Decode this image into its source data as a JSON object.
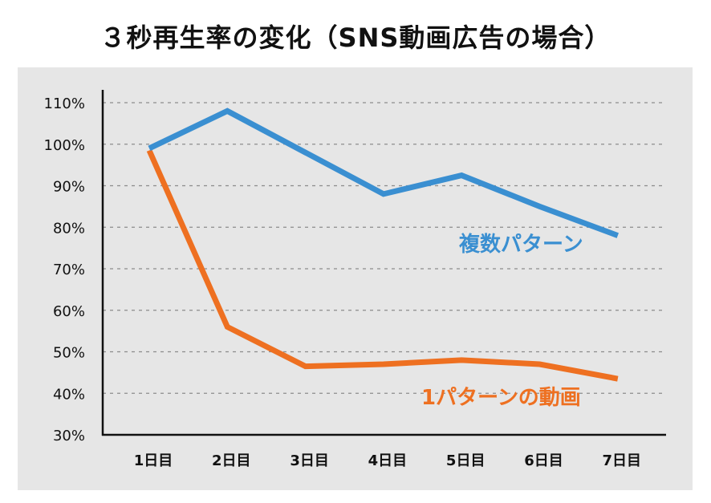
{
  "chart_data": {
    "type": "line",
    "title": "３秒再生率の変化（SNS動画広告の場合）",
    "xlabel": "",
    "ylabel": "",
    "categories": [
      "1日目",
      "2日目",
      "3日目",
      "4日目",
      "5日目",
      "6日目",
      "7日目"
    ],
    "y_ticks": [
      "30%",
      "40%",
      "50%",
      "60%",
      "70%",
      "80%",
      "90%",
      "100%",
      "110%"
    ],
    "ylim": [
      30,
      110
    ],
    "grid": "horizontal-dashed",
    "series": [
      {
        "name": "複数パターン",
        "values": [
          99,
          108,
          98,
          88,
          92.5,
          85,
          78
        ],
        "color": "#3a8fd1"
      },
      {
        "name": "1パターンの動画",
        "values": [
          98.5,
          56,
          46.5,
          47,
          48,
          47,
          43.5
        ],
        "color": "#ee7021"
      }
    ]
  }
}
